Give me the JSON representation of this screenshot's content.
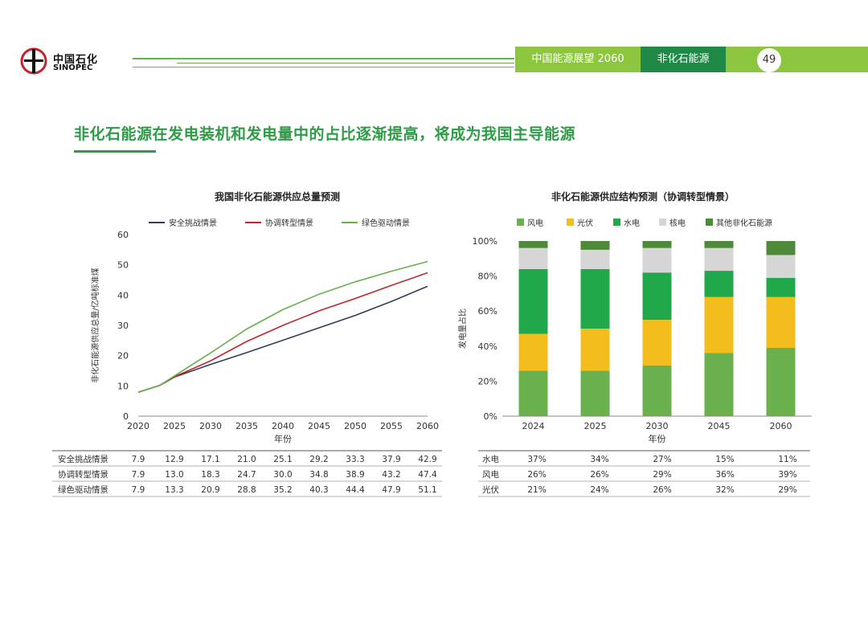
{
  "header": {
    "logo_cn": "中国石化",
    "logo_en": "SINOPEC",
    "report_tab": "中国能源展望 2060",
    "section_tab": "非化石能源",
    "page_number": "49"
  },
  "headline": "非化石能源在发电装机和发电量中的占比逐渐提高，将成为我国主导能源",
  "colors": {
    "brand_green": "#2e9b46",
    "header_light_green": "#8cc63f",
    "header_dark_green": "#1f8a47"
  },
  "left_table": {
    "rows": [
      {
        "label": "安全挑战情景",
        "values": [
          "7.9",
          "12.9",
          "17.1",
          "21.0",
          "25.1",
          "29.2",
          "33.3",
          "37.9",
          "42.9"
        ]
      },
      {
        "label": "协调转型情景",
        "values": [
          "7.9",
          "13.0",
          "18.3",
          "24.7",
          "30.0",
          "34.8",
          "38.9",
          "43.2",
          "47.4"
        ]
      },
      {
        "label": "绿色驱动情景",
        "values": [
          "7.9",
          "13.3",
          "20.9",
          "28.8",
          "35.2",
          "40.3",
          "44.4",
          "47.9",
          "51.1"
        ]
      }
    ]
  },
  "right_table": {
    "rows": [
      {
        "label": "水电",
        "values": [
          "37%",
          "34%",
          "27%",
          "15%",
          "11%"
        ]
      },
      {
        "label": "风电",
        "values": [
          "26%",
          "26%",
          "29%",
          "36%",
          "39%"
        ]
      },
      {
        "label": "光伏",
        "values": [
          "21%",
          "24%",
          "26%",
          "32%",
          "29%"
        ]
      }
    ]
  },
  "chart_data": [
    {
      "type": "line",
      "title": "我国非化石能源供应总量预测",
      "xlabel": "年份",
      "ylabel": "非化石能源供应总量/亿吨标准煤",
      "x": [
        2020,
        2023,
        2025,
        2030,
        2035,
        2040,
        2045,
        2050,
        2055,
        2060
      ],
      "xticks": [
        "2020",
        "2025",
        "2030",
        "2035",
        "2040",
        "2045",
        "2050",
        "2055",
        "2060"
      ],
      "ylim": [
        0,
        60
      ],
      "yticks": [
        "0",
        "10",
        "20",
        "30",
        "40",
        "50",
        "60"
      ],
      "grid": false,
      "legend": "top",
      "series": [
        {
          "name": "安全挑战情景",
          "color": "#2f3f56",
          "values": [
            7.9,
            10.2,
            12.9,
            17.1,
            21.0,
            25.1,
            29.2,
            33.3,
            37.9,
            42.9
          ]
        },
        {
          "name": "协调转型情景",
          "color": "#c0262d",
          "values": [
            7.9,
            10.2,
            13.0,
            18.3,
            24.7,
            30.0,
            34.8,
            38.9,
            43.2,
            47.4
          ]
        },
        {
          "name": "绿色驱动情景",
          "color": "#6ab04c",
          "values": [
            7.9,
            10.2,
            13.3,
            20.9,
            28.8,
            35.2,
            40.3,
            44.4,
            47.9,
            51.1
          ]
        }
      ]
    },
    {
      "type": "bar",
      "stacked": true,
      "title": "非化石能源供应结构预测（协调转型情景）",
      "xlabel": "年份",
      "ylabel": "发电量占比",
      "categories": [
        "2024",
        "2025",
        "2030",
        "2045",
        "2060"
      ],
      "ylim": [
        0,
        100
      ],
      "yticks": [
        "0%",
        "20%",
        "40%",
        "60%",
        "80%",
        "100%"
      ],
      "grid": false,
      "legend": "top",
      "series": [
        {
          "name": "风电",
          "color": "#6ab04c",
          "values": [
            26,
            26,
            29,
            36,
            39
          ]
        },
        {
          "name": "光伏",
          "color": "#f2bd1d",
          "values": [
            21,
            24,
            26,
            32,
            29
          ]
        },
        {
          "name": "水电",
          "color": "#21a84a",
          "values": [
            37,
            34,
            27,
            15,
            11
          ]
        },
        {
          "name": "核电",
          "color": "#d6d6d6",
          "values": [
            12,
            11,
            14,
            13,
            13
          ]
        },
        {
          "name": "其他非化石能源",
          "color": "#4e8a3a",
          "values": [
            4,
            5,
            4,
            4,
            8
          ]
        }
      ]
    }
  ]
}
